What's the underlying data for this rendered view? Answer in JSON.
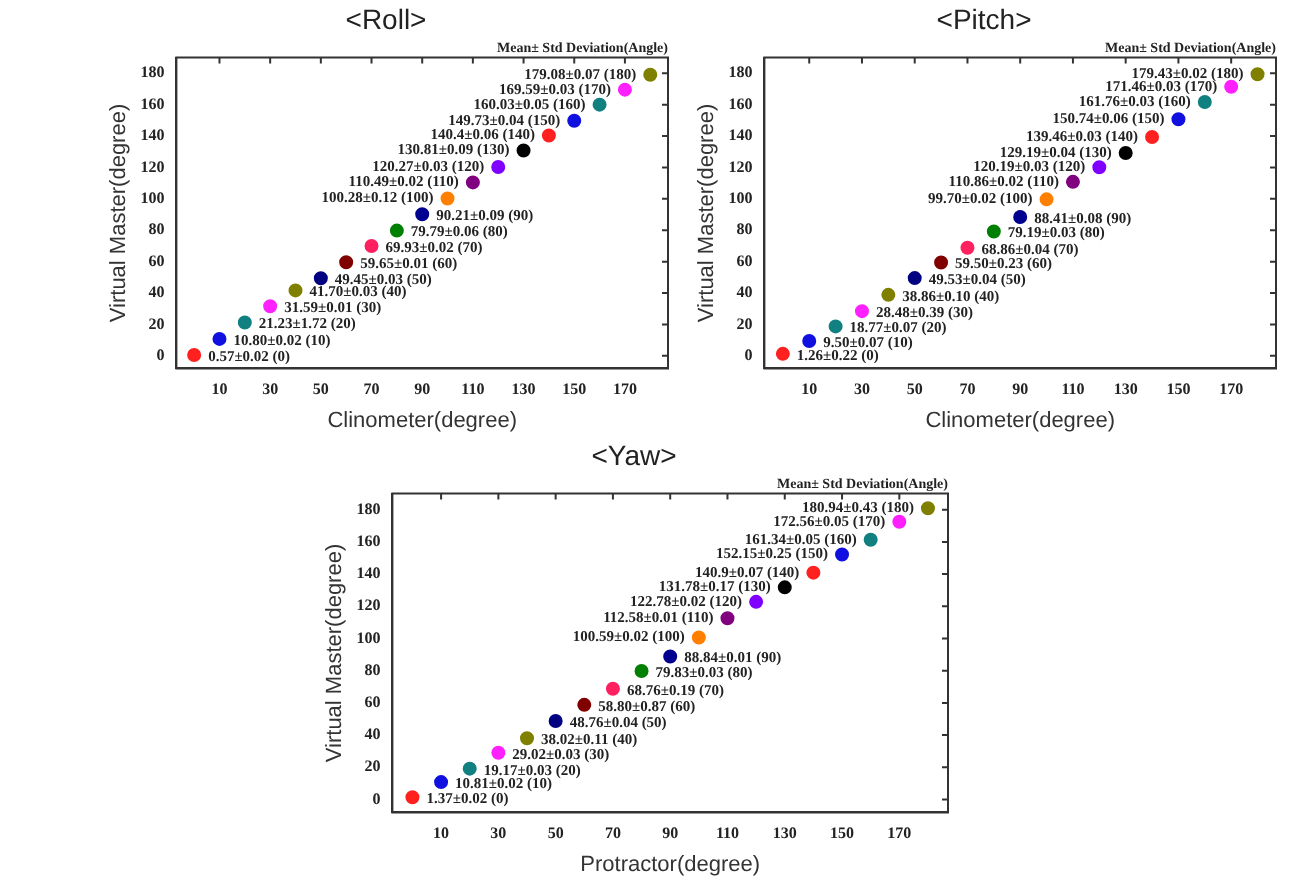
{
  "chart_data": [
    {
      "type": "scatter",
      "title": "<Roll>",
      "xlabel": "Clinometer(degree)",
      "ylabel": "Virtual Master(degree)",
      "annotations": [
        "Mean± Std Deviation(Angle)"
      ],
      "marker": "circle",
      "data_labels": false,
      "x": [
        0,
        10,
        20,
        30,
        40,
        50,
        60,
        70,
        80,
        90,
        100,
        110,
        120,
        130,
        140,
        150,
        160,
        170,
        180
      ],
      "values": [
        0.57,
        10.8,
        21.23,
        31.59,
        41.7,
        49.45,
        59.65,
        69.93,
        79.79,
        90.21,
        100.28,
        110.49,
        120.27,
        130.81,
        140.4,
        149.73,
        160.03,
        169.59,
        179.08
      ],
      "value_labels": [
        "0.57±0.02 (0)",
        "10.80±0.02 (10)",
        "21.23±1.72 (20)",
        "31.59±0.01 (30)",
        "41.70±0.03 (40)",
        "49.45±0.03 (50)",
        "59.65±0.01 (60)",
        "69.93±0.02 (70)",
        "79.79±0.06 (80)",
        "90.21±0.09 (90)",
        "100.28±0.12 (100)",
        "110.49±0.02 (110)",
        "120.27±0.03 (120)",
        "130.81±0.09 (130)",
        "140.4±0.06 (140)",
        "149.73±0.04 (150)",
        "160.03±0.05 (160)",
        "169.59±0.03 (170)",
        "179.08±0.07 (180)"
      ],
      "colors": [
        "#ff2020",
        "#1010e0",
        "#108080",
        "#ff20ff",
        "#808000",
        "#000080",
        "#800000",
        "#ff2060",
        "#008000",
        "#000090",
        "#ff8000",
        "#800080",
        "#8000ff",
        "#000000",
        "#ff2020",
        "#1010e0",
        "#108080",
        "#ff20ff",
        "#808000"
      ],
      "xlim": [
        -7,
        187
      ],
      "ylim": [
        -8,
        190
      ],
      "xticks": [
        10,
        30,
        50,
        70,
        90,
        110,
        130,
        150,
        170
      ],
      "yticks": [
        0,
        20,
        40,
        60,
        80,
        100,
        120,
        140,
        160,
        180
      ]
    },
    {
      "type": "scatter",
      "title": "<Pitch>",
      "xlabel": "Clinometer(degree)",
      "ylabel": "Virtual Master(degree)",
      "annotations": [
        "Mean± Std Deviation(Angle)"
      ],
      "marker": "circle",
      "x": [
        0,
        10,
        20,
        30,
        40,
        50,
        60,
        70,
        80,
        90,
        100,
        110,
        120,
        130,
        140,
        150,
        160,
        170,
        180
      ],
      "values": [
        1.26,
        9.5,
        18.77,
        28.48,
        38.86,
        49.53,
        59.5,
        68.86,
        79.19,
        88.41,
        99.7,
        110.86,
        120.19,
        129.19,
        139.46,
        150.74,
        161.76,
        171.46,
        179.43
      ],
      "value_labels": [
        "1.26±0.22 (0)",
        "9.50±0.07 (10)",
        "18.77±0.07 (20)",
        "28.48±0.39 (30)",
        "38.86±0.10 (40)",
        "49.53±0.04 (50)",
        "59.50±0.23 (60)",
        "68.86±0.04 (70)",
        "79.19±0.03 (80)",
        "88.41±0.08 (90)",
        "99.70±0.02 (100)",
        "110.86±0.02 (110)",
        "120.19±0.03 (120)",
        "129.19±0.04 (130)",
        "139.46±0.03 (140)",
        "150.74±0.06 (150)",
        "161.76±0.03 (160)",
        "171.46±0.03 (170)",
        "179.43±0.02 (180)"
      ],
      "colors": [
        "#ff2020",
        "#1010e0",
        "#108080",
        "#ff20ff",
        "#808000",
        "#000080",
        "#800000",
        "#ff2060",
        "#008000",
        "#000090",
        "#ff8000",
        "#800080",
        "#8000ff",
        "#000000",
        "#ff2020",
        "#1010e0",
        "#108080",
        "#ff20ff",
        "#808000"
      ],
      "xlim": [
        -7,
        187
      ],
      "ylim": [
        -8,
        190
      ],
      "xticks": [
        10,
        30,
        50,
        70,
        90,
        110,
        130,
        150,
        170
      ],
      "yticks": [
        0,
        20,
        40,
        60,
        80,
        100,
        120,
        140,
        160,
        180
      ]
    },
    {
      "type": "scatter",
      "title": "<Yaw>",
      "xlabel": "Protractor(degree)",
      "ylabel": "Virtual Master(degree)",
      "annotations": [
        "Mean± Std Deviation(Angle)"
      ],
      "marker": "circle",
      "x": [
        0,
        10,
        20,
        30,
        40,
        50,
        60,
        70,
        80,
        90,
        100,
        110,
        120,
        130,
        140,
        150,
        160,
        170,
        180
      ],
      "values": [
        1.37,
        10.81,
        19.17,
        29.02,
        38.02,
        48.76,
        58.8,
        68.76,
        79.83,
        88.84,
        100.59,
        112.58,
        122.78,
        131.78,
        140.9,
        152.15,
        161.34,
        172.56,
        180.94
      ],
      "value_labels": [
        "1.37±0.02 (0)",
        "10.81±0.02 (10)",
        "19.17±0.03 (20)",
        "29.02±0.03 (30)",
        "38.02±0.11 (40)",
        "48.76±0.04 (50)",
        "58.80±0.87 (60)",
        "68.76±0.19 (70)",
        "79.83±0.03 (80)",
        "88.84±0.01 (90)",
        "100.59±0.02 (100)",
        "112.58±0.01 (110)",
        "122.78±0.02 (120)",
        "131.78±0.17 (130)",
        "140.9±0.07 (140)",
        "152.15±0.25 (150)",
        "161.34±0.05 (160)",
        "172.56±0.05 (170)",
        "180.94±0.43 (180)"
      ],
      "colors": [
        "#ff2020",
        "#1010e0",
        "#108080",
        "#ff20ff",
        "#808000",
        "#000080",
        "#800000",
        "#ff2060",
        "#008000",
        "#000090",
        "#ff8000",
        "#800080",
        "#8000ff",
        "#000000",
        "#ff2020",
        "#1010e0",
        "#108080",
        "#ff20ff",
        "#808000"
      ],
      "xlim": [
        -7,
        187
      ],
      "ylim": [
        -8,
        190
      ],
      "xticks": [
        10,
        30,
        50,
        70,
        90,
        110,
        130,
        150,
        170
      ],
      "yticks": [
        0,
        20,
        40,
        60,
        80,
        100,
        120,
        140,
        160,
        180
      ]
    }
  ]
}
